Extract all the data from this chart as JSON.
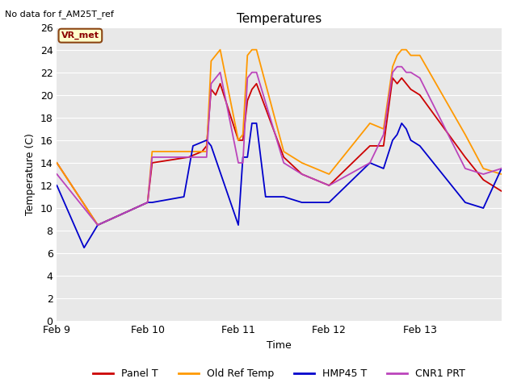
{
  "title": "Temperatures",
  "ylabel": "Temperature (C)",
  "xlabel": "Time",
  "top_left_text": "No data for f_AM25T_ref",
  "annotation_label": "VR_met",
  "fig_facecolor": "#ffffff",
  "plot_bg_color": "#e8e8e8",
  "ylim": [
    0,
    26
  ],
  "yticks": [
    0,
    2,
    4,
    6,
    8,
    10,
    12,
    14,
    16,
    18,
    20,
    22,
    24,
    26
  ],
  "xtick_labels": [
    "Feb 9",
    "Feb 10",
    "Feb 11",
    "Feb 12",
    "Feb 13"
  ],
  "legend": [
    {
      "label": "Panel T",
      "color": "#cc0000"
    },
    {
      "label": "Old Ref Temp",
      "color": "#ff9900"
    },
    {
      "label": "HMP45 T",
      "color": "#0000cc"
    },
    {
      "label": "CNR1 PRT",
      "color": "#bb44bb"
    }
  ],
  "panel_t": {
    "color": "#cc0000",
    "x": [
      0,
      0.45,
      1.0,
      1.05,
      1.45,
      1.6,
      1.65,
      1.7,
      1.75,
      1.8,
      2.0,
      2.05,
      2.1,
      2.15,
      2.2,
      2.5,
      2.7,
      3.0,
      3.45,
      3.6,
      3.7,
      3.75,
      3.8,
      3.85,
      3.9,
      4.0,
      4.5,
      4.7,
      4.9
    ],
    "y": [
      14.0,
      8.5,
      10.5,
      14.0,
      14.5,
      15.0,
      15.5,
      20.5,
      20.0,
      21.0,
      16.0,
      16.0,
      19.5,
      20.5,
      21.0,
      14.5,
      13.0,
      12.0,
      15.5,
      15.5,
      21.5,
      21.0,
      21.5,
      21.0,
      20.5,
      20.0,
      14.5,
      12.5,
      11.5
    ]
  },
  "old_ref_t": {
    "color": "#ff9900",
    "x": [
      0,
      0.45,
      1.0,
      1.05,
      1.45,
      1.65,
      1.7,
      1.75,
      1.8,
      2.0,
      2.05,
      2.1,
      2.15,
      2.2,
      2.5,
      2.7,
      3.0,
      3.45,
      3.6,
      3.7,
      3.75,
      3.8,
      3.85,
      3.9,
      4.0,
      4.5,
      4.7,
      4.9
    ],
    "y": [
      14.0,
      8.5,
      10.5,
      15.0,
      15.0,
      15.0,
      23.0,
      23.5,
      24.0,
      16.0,
      16.5,
      23.5,
      24.0,
      24.0,
      15.0,
      14.0,
      13.0,
      17.5,
      17.0,
      22.5,
      23.5,
      24.0,
      24.0,
      23.5,
      23.5,
      16.5,
      13.5,
      13.0
    ]
  },
  "hmp45_t": {
    "color": "#0000cc",
    "x": [
      0,
      0.3,
      0.45,
      1.0,
      1.05,
      1.4,
      1.5,
      1.65,
      1.7,
      2.0,
      2.05,
      2.1,
      2.15,
      2.2,
      2.3,
      2.5,
      2.7,
      3.0,
      3.45,
      3.6,
      3.7,
      3.75,
      3.8,
      3.85,
      3.9,
      4.0,
      4.5,
      4.7,
      4.9
    ],
    "y": [
      12.0,
      6.5,
      8.5,
      10.5,
      10.5,
      11.0,
      15.5,
      16.0,
      15.5,
      8.5,
      14.5,
      14.5,
      17.5,
      17.5,
      11.0,
      11.0,
      10.5,
      10.5,
      14.0,
      13.5,
      16.0,
      16.5,
      17.5,
      17.0,
      16.0,
      15.5,
      10.5,
      10.0,
      13.5
    ]
  },
  "cnr1_prt": {
    "color": "#bb44bb",
    "x": [
      0,
      0.45,
      1.0,
      1.05,
      1.45,
      1.65,
      1.7,
      1.75,
      1.8,
      2.0,
      2.05,
      2.1,
      2.15,
      2.2,
      2.5,
      2.7,
      3.0,
      3.45,
      3.6,
      3.7,
      3.75,
      3.8,
      3.85,
      3.9,
      4.0,
      4.5,
      4.7,
      4.9
    ],
    "y": [
      13.0,
      8.5,
      10.5,
      14.5,
      14.5,
      14.5,
      21.0,
      21.5,
      22.0,
      14.0,
      14.0,
      21.5,
      22.0,
      22.0,
      14.0,
      13.0,
      12.0,
      14.0,
      16.5,
      22.0,
      22.5,
      22.5,
      22.0,
      22.0,
      21.5,
      13.5,
      13.0,
      13.5
    ]
  }
}
